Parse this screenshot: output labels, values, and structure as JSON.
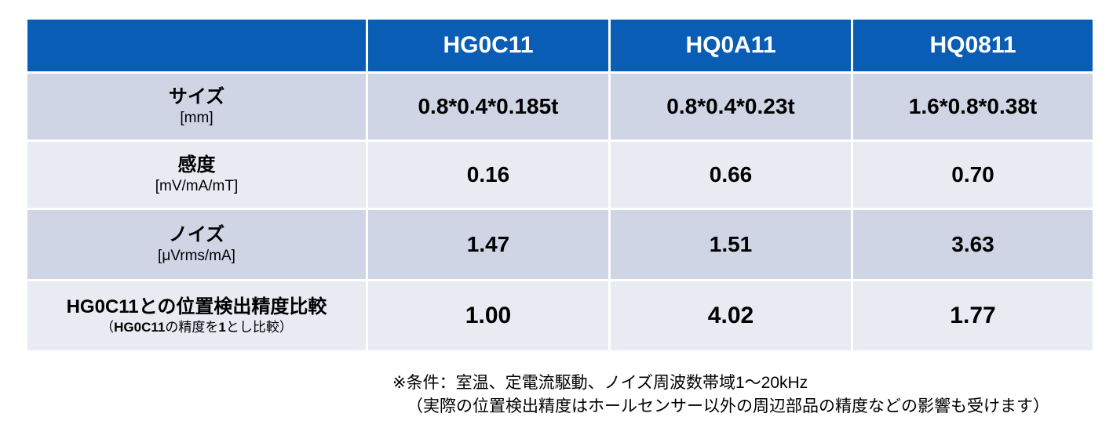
{
  "table": {
    "headers": [
      "",
      "HG0C11",
      "HQ0A11",
      "HQ0811"
    ],
    "rows": [
      {
        "title": "サイズ",
        "unit": "[mm]",
        "values": [
          "0.8*0.4*0.185t",
          "0.8*0.4*0.23t",
          "1.6*0.8*0.38t"
        ]
      },
      {
        "title": "感度",
        "unit": "[mV/mA/mT]",
        "values": [
          "0.16",
          "0.66",
          "0.70"
        ]
      },
      {
        "title": "ノイズ",
        "unit": "[μVrms/mA]",
        "values": [
          "1.47",
          "1.51",
          "3.63"
        ]
      },
      {
        "title": "HG0C11との位置検出精度比較",
        "note_prefix": "（",
        "note_model": "HG0C11",
        "note_mid1": "の精度を",
        "note_num": "1",
        "note_suffix": "とし比較）",
        "values": [
          "1.00",
          "4.02",
          "1.77"
        ]
      }
    ]
  },
  "notes": {
    "condition": "※条件：室温、定電流駆動、ノイズ周波数帯域1～20kHz",
    "disclaimer": "（実際の位置検出精度はホールセンサー以外の周辺部品の精度などの影響も受けます）"
  },
  "colors": {
    "header_bg": "#0a5db4",
    "row_dark": "#cfd5e5",
    "row_light": "#e9ebf3"
  }
}
